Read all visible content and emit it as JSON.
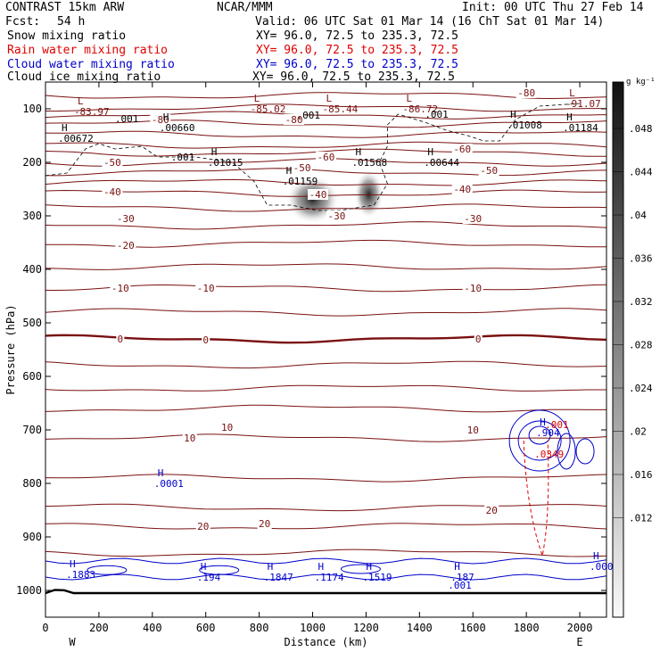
{
  "header": {
    "model": "CONTRAST 15km ARW",
    "org": "NCAR/MMM",
    "init": "Init: 00 UTC Thu 27 Feb 14",
    "fcst_label": "Fcst:",
    "fcst_value": "54 h",
    "valid": "Valid: 06 UTC Sat 01 Mar 14 (16 ChT Sat 01 Mar 14)"
  },
  "fields": [
    {
      "name": "Snow mixing ratio",
      "xy": "XY=  96.0, 72.5 to 235.3, 72.5",
      "color": "#000000"
    },
    {
      "name": "Rain water mixing ratio",
      "xy": "XY=  96.0, 72.5 to 235.3, 72.5",
      "color": "#e00000"
    },
    {
      "name": "Cloud water mixing ratio",
      "xy": "XY=  96.0, 72.5 to 235.3, 72.5",
      "color": "#0000cc"
    },
    {
      "name": "Cloud ice mixing ratio",
      "xy": "XY=  96.0, 72.5 to 235.3, 72.5",
      "color": "#000000"
    }
  ],
  "chart_data": {
    "type": "cross-section",
    "xlabel": "Distance (km)",
    "ylabel": "Pressure (hPa)",
    "xlim": [
      0,
      2100
    ],
    "ylim": [
      1050,
      50
    ],
    "x_ticks": [
      0,
      200,
      400,
      600,
      800,
      1000,
      1200,
      1400,
      1600,
      1800,
      2000
    ],
    "y_ticks": [
      100,
      200,
      300,
      400,
      500,
      600,
      700,
      800,
      900,
      1000
    ],
    "left_end": "W",
    "right_end": "E",
    "colorbar": {
      "unit": "g kg⁻¹",
      "ticks": [
        ".048",
        ".044",
        ".04",
        ".036",
        ".032",
        ".028",
        ".024",
        ".02",
        ".016",
        ".012"
      ]
    },
    "temperature_labels": [
      {
        "x": 250,
        "p": 200,
        "text": "-50"
      },
      {
        "x": 250,
        "p": 255,
        "text": "-40"
      },
      {
        "x": 300,
        "p": 305,
        "text": "-30"
      },
      {
        "x": 300,
        "p": 355,
        "text": "-20"
      },
      {
        "x": 280,
        "p": 435,
        "text": "-10"
      },
      {
        "x": 600,
        "p": 435,
        "text": "-10"
      },
      {
        "x": 280,
        "p": 530,
        "text": "0"
      },
      {
        "x": 600,
        "p": 532,
        "text": "0"
      },
      {
        "x": 540,
        "p": 715,
        "text": "10"
      },
      {
        "x": 680,
        "p": 695,
        "text": "10"
      },
      {
        "x": 1600,
        "p": 700,
        "text": "10"
      },
      {
        "x": 590,
        "p": 880,
        "text": "20"
      },
      {
        "x": 820,
        "p": 875,
        "text": "20"
      },
      {
        "x": 1670,
        "p": 850,
        "text": "20"
      },
      {
        "x": 1020,
        "p": 260,
        "text": "-40"
      },
      {
        "x": 1090,
        "p": 300,
        "text": "-30"
      },
      {
        "x": 1560,
        "p": 250,
        "text": "-40"
      },
      {
        "x": 1600,
        "p": 305,
        "text": "-30"
      },
      {
        "x": 1600,
        "p": 435,
        "text": "-10"
      },
      {
        "x": 1620,
        "p": 530,
        "text": "0"
      },
      {
        "x": 1050,
        "p": 190,
        "text": "-60"
      },
      {
        "x": 1560,
        "p": 175,
        "text": "-60"
      },
      {
        "x": 1660,
        "p": 215,
        "text": "-50"
      },
      {
        "x": 960,
        "p": 210,
        "text": "-50"
      },
      {
        "x": 1800,
        "p": 70,
        "text": "-80"
      },
      {
        "x": 430,
        "p": 120,
        "text": "-80"
      },
      {
        "x": 930,
        "p": 120,
        "text": "-80"
      }
    ],
    "extrema_labels": [
      {
        "x": 120,
        "p": 95,
        "letter": "L",
        "value": "-83.97"
      },
      {
        "x": 780,
        "p": 90,
        "letter": "L",
        "value": "-85.02"
      },
      {
        "x": 1050,
        "p": 90,
        "letter": "L",
        "value": "-85.44"
      },
      {
        "x": 1350,
        "p": 90,
        "letter": "L",
        "value": "-86.72"
      },
      {
        "x": 1960,
        "p": 80,
        "letter": "L",
        "value": "-91.07"
      },
      {
        "x": 60,
        "p": 145,
        "letter": "H",
        "value": ".00672"
      },
      {
        "x": 440,
        "p": 125,
        "letter": "H",
        "value": ".00660"
      },
      {
        "x": 620,
        "p": 190,
        "letter": "H",
        "value": ".01015"
      },
      {
        "x": 900,
        "p": 225,
        "letter": "H",
        "value": ".01159"
      },
      {
        "x": 1160,
        "p": 190,
        "letter": "H",
        "value": ".01568"
      },
      {
        "x": 1430,
        "p": 190,
        "letter": "H",
        "value": ".00644"
      },
      {
        "x": 1740,
        "p": 120,
        "letter": "H",
        "value": ".01008"
      },
      {
        "x": 1950,
        "p": 125,
        "letter": "H",
        "value": ".01184"
      }
    ],
    "snow_contour_labels": [
      {
        "x": 260,
        "p": 118,
        "text": ".001"
      },
      {
        "x": 940,
        "p": 112,
        "text": ".001"
      },
      {
        "x": 1420,
        "p": 110,
        "text": ".001"
      },
      {
        "x": 470,
        "p": 190,
        "text": ".001"
      }
    ],
    "cloud_water_labels": [
      {
        "x": 420,
        "p": 790,
        "letter": "H",
        "value": ".0001"
      },
      {
        "x": 90,
        "p": 960,
        "letter": "H",
        "value": ".1883"
      },
      {
        "x": 580,
        "p": 965,
        "letter": "H",
        "value": ".194"
      },
      {
        "x": 830,
        "p": 965,
        "letter": "H",
        "value": ".1847"
      },
      {
        "x": 1020,
        "p": 965,
        "letter": "H",
        "value": ".1174"
      },
      {
        "x": 1200,
        "p": 965,
        "letter": "H",
        "value": ".1519"
      },
      {
        "x": 1530,
        "p": 965,
        "letter": "H",
        "value": ".187"
      },
      {
        "x": 2050,
        "p": 945,
        "letter": "H",
        "value": ".000"
      },
      {
        "x": 1850,
        "p": 695,
        "letter": "H",
        "value": ".904"
      },
      {
        "x": 1520,
        "p": 980,
        "letter": "",
        "value": ".001"
      }
    ],
    "rain_labels": [
      {
        "x": 1870,
        "p": 690,
        "text": ".001"
      },
      {
        "x": 1830,
        "p": 745,
        "text": ".0349"
      }
    ],
    "snow_shading": [
      {
        "x": 1000,
        "p": 270,
        "rx": 100,
        "rp": 45,
        "intensity": 0.032
      },
      {
        "x": 1210,
        "p": 260,
        "rx": 55,
        "rp": 45,
        "intensity": 0.046
      }
    ]
  }
}
